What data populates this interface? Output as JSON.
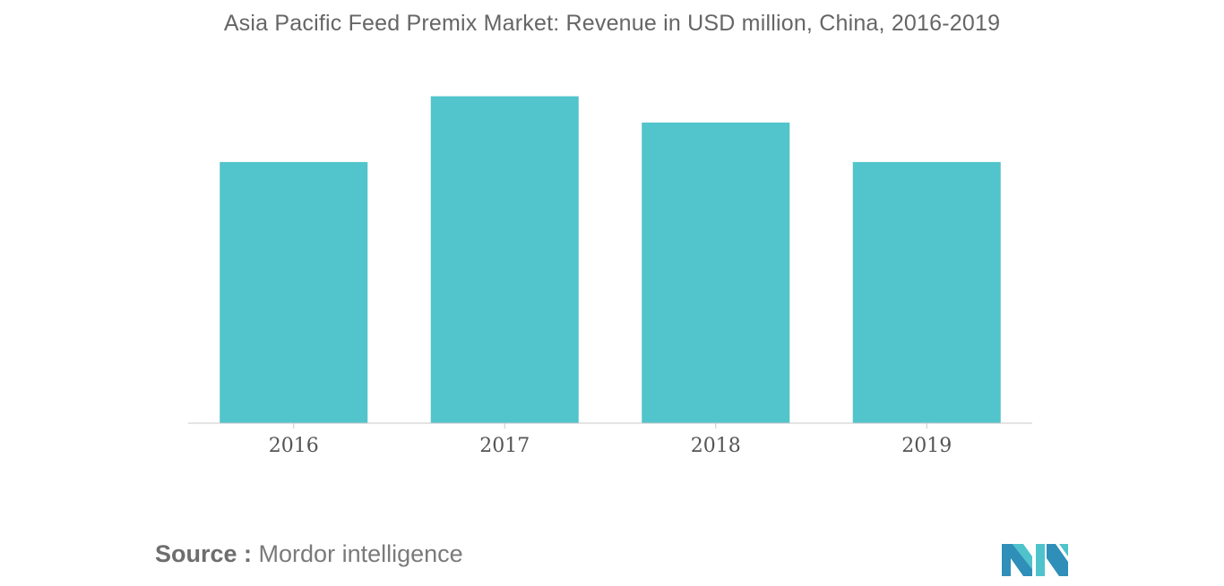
{
  "chart_data": {
    "type": "bar",
    "title": "Asia Pacific Feed Premix Market: Revenue in USD million, China, 2016-2019",
    "categories": [
      "2016",
      "2017",
      "2018",
      "2019"
    ],
    "values": [
      278,
      348,
      320,
      278
    ],
    "xlabel": "",
    "ylabel": "",
    "ylim": [
      0,
      360
    ],
    "grid": false,
    "legend": "none",
    "bar_color": "#52c4cb",
    "axis_color": "#c8c8c8",
    "tick_label_color": "#555555"
  },
  "source": {
    "label": "Source :",
    "text": "Mordor intelligence"
  },
  "logo": {
    "icon": "mordor-intelligence-logo",
    "colors": [
      "#2f8fb8",
      "#4fc3cc"
    ]
  }
}
